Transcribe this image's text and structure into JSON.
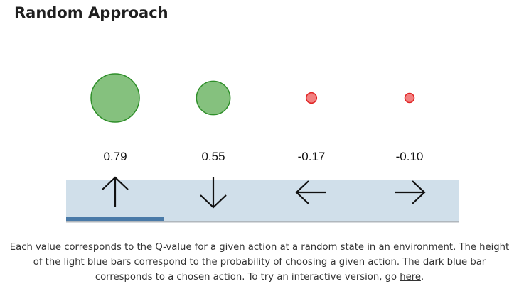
{
  "title": "Random Approach",
  "chart_data": {
    "type": "bar",
    "actions": [
      {
        "arrow": "up-arrow",
        "label": "0.79",
        "q": 0.79
      },
      {
        "arrow": "down-arrow",
        "label": "0.55",
        "q": 0.55
      },
      {
        "arrow": "left-arrow",
        "label": "-0.17",
        "q": -0.17
      },
      {
        "arrow": "right-arrow",
        "label": "-0.10",
        "q": -0.1
      }
    ],
    "probabilities": [
      1.0,
      1.0,
      1.0,
      1.0
    ],
    "chosen_index": 0
  },
  "colors": {
    "positive_fill": "#85c17e",
    "positive_stroke": "#2f8f2a",
    "negative_fill": "#f28080",
    "negative_stroke": "#e02424",
    "prob_bar": "#d0dfea",
    "chosen_bar": "#4a7aa8",
    "baseline": "#b0b7bd"
  },
  "caption": {
    "text": "Each value corresponds to the Q-value for a given action at a random state in an environment. The height of the light blue bars correspond to the probability of choosing a given action. The dark blue bar corresponds to a chosen action. To try an interactive version, go ",
    "link": "here",
    "end": "."
  }
}
